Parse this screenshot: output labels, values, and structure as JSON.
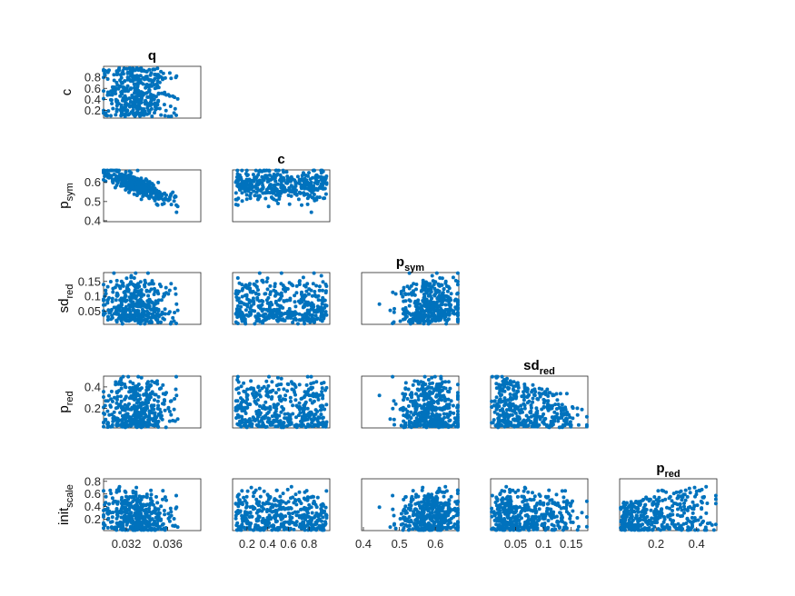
{
  "chart_data": {
    "type": "scatter",
    "layout": "lower-triangular scatter-plot matrix",
    "marker_color": "#0072BD",
    "background": "#ffffff",
    "points_per_panel": 400,
    "variables": [
      {
        "key": "q",
        "label": "q",
        "sub": "",
        "range": [
          0.0298,
          0.0392
        ],
        "ticks": [
          {
            "v": 0.032,
            "label": "0.032"
          },
          {
            "v": 0.036,
            "label": "0.036"
          }
        ]
      },
      {
        "key": "c",
        "label": "c",
        "sub": "",
        "range": [
          0.06,
          1.0
        ],
        "ticks": [
          {
            "v": 0.2,
            "label": "0.2"
          },
          {
            "v": 0.4,
            "label": "0.4"
          },
          {
            "v": 0.6,
            "label": "0.6"
          },
          {
            "v": 0.8,
            "label": "0.8"
          }
        ]
      },
      {
        "key": "p_sym",
        "label": "p",
        "sub": "sym",
        "range": [
          0.395,
          0.665
        ],
        "ticks": [
          {
            "v": 0.4,
            "label": "0.4"
          },
          {
            "v": 0.5,
            "label": "0.5"
          },
          {
            "v": 0.6,
            "label": "0.6"
          }
        ]
      },
      {
        "key": "sd_red",
        "label": "sd",
        "sub": "red",
        "range": [
          0.005,
          0.18
        ],
        "ticks": [
          {
            "v": 0.05,
            "label": "0.05"
          },
          {
            "v": 0.1,
            "label": "0.1"
          },
          {
            "v": 0.15,
            "label": "0.15"
          }
        ]
      },
      {
        "key": "p_red",
        "label": "p",
        "sub": "red",
        "range": [
          0.02,
          0.5
        ],
        "ticks": [
          {
            "v": 0.2,
            "label": "0.2"
          },
          {
            "v": 0.4,
            "label": "0.4"
          }
        ]
      },
      {
        "key": "init_scale",
        "label": "init",
        "sub": "scale",
        "range": [
          0.02,
          0.84
        ],
        "ticks": [
          {
            "v": 0.2,
            "label": "0.2"
          },
          {
            "v": 0.4,
            "label": "0.4"
          },
          {
            "v": 0.6,
            "label": "0.6"
          },
          {
            "v": 0.8,
            "label": "0.8"
          }
        ]
      }
    ],
    "panels": [
      {
        "row": 1,
        "col": 0,
        "x": "q",
        "y": "c",
        "title": "q",
        "title_sub": "",
        "trend": "none"
      },
      {
        "row": 2,
        "col": 0,
        "x": "q",
        "y": "p_sym",
        "trend": "strong negative"
      },
      {
        "row": 2,
        "col": 1,
        "x": "c",
        "y": "p_sym",
        "title": "c",
        "title_sub": "",
        "trend": "none"
      },
      {
        "row": 3,
        "col": 0,
        "x": "q",
        "y": "sd_red",
        "trend": "weak negative"
      },
      {
        "row": 3,
        "col": 1,
        "x": "c",
        "y": "sd_red",
        "trend": "none"
      },
      {
        "row": 3,
        "col": 2,
        "x": "p_sym",
        "y": "sd_red",
        "title": "p",
        "title_sub": "sym",
        "trend": "weak positive"
      },
      {
        "row": 4,
        "col": 0,
        "x": "q",
        "y": "p_red",
        "trend": "weak negative"
      },
      {
        "row": 4,
        "col": 1,
        "x": "c",
        "y": "p_red",
        "trend": "none"
      },
      {
        "row": 4,
        "col": 2,
        "x": "p_sym",
        "y": "p_red",
        "trend": "weak negative"
      },
      {
        "row": 4,
        "col": 3,
        "x": "sd_red",
        "y": "p_red",
        "title": "sd",
        "title_sub": "red",
        "trend": "negative"
      },
      {
        "row": 5,
        "col": 0,
        "x": "q",
        "y": "init_scale",
        "trend": "negative"
      },
      {
        "row": 5,
        "col": 1,
        "x": "c",
        "y": "init_scale",
        "trend": "none"
      },
      {
        "row": 5,
        "col": 2,
        "x": "p_sym",
        "y": "init_scale",
        "trend": "weak negative"
      },
      {
        "row": 5,
        "col": 3,
        "x": "sd_red",
        "y": "init_scale",
        "trend": "weak negative"
      },
      {
        "row": 5,
        "col": 4,
        "x": "p_red",
        "y": "init_scale",
        "title": "p",
        "title_sub": "red",
        "trend": "positive"
      }
    ]
  }
}
